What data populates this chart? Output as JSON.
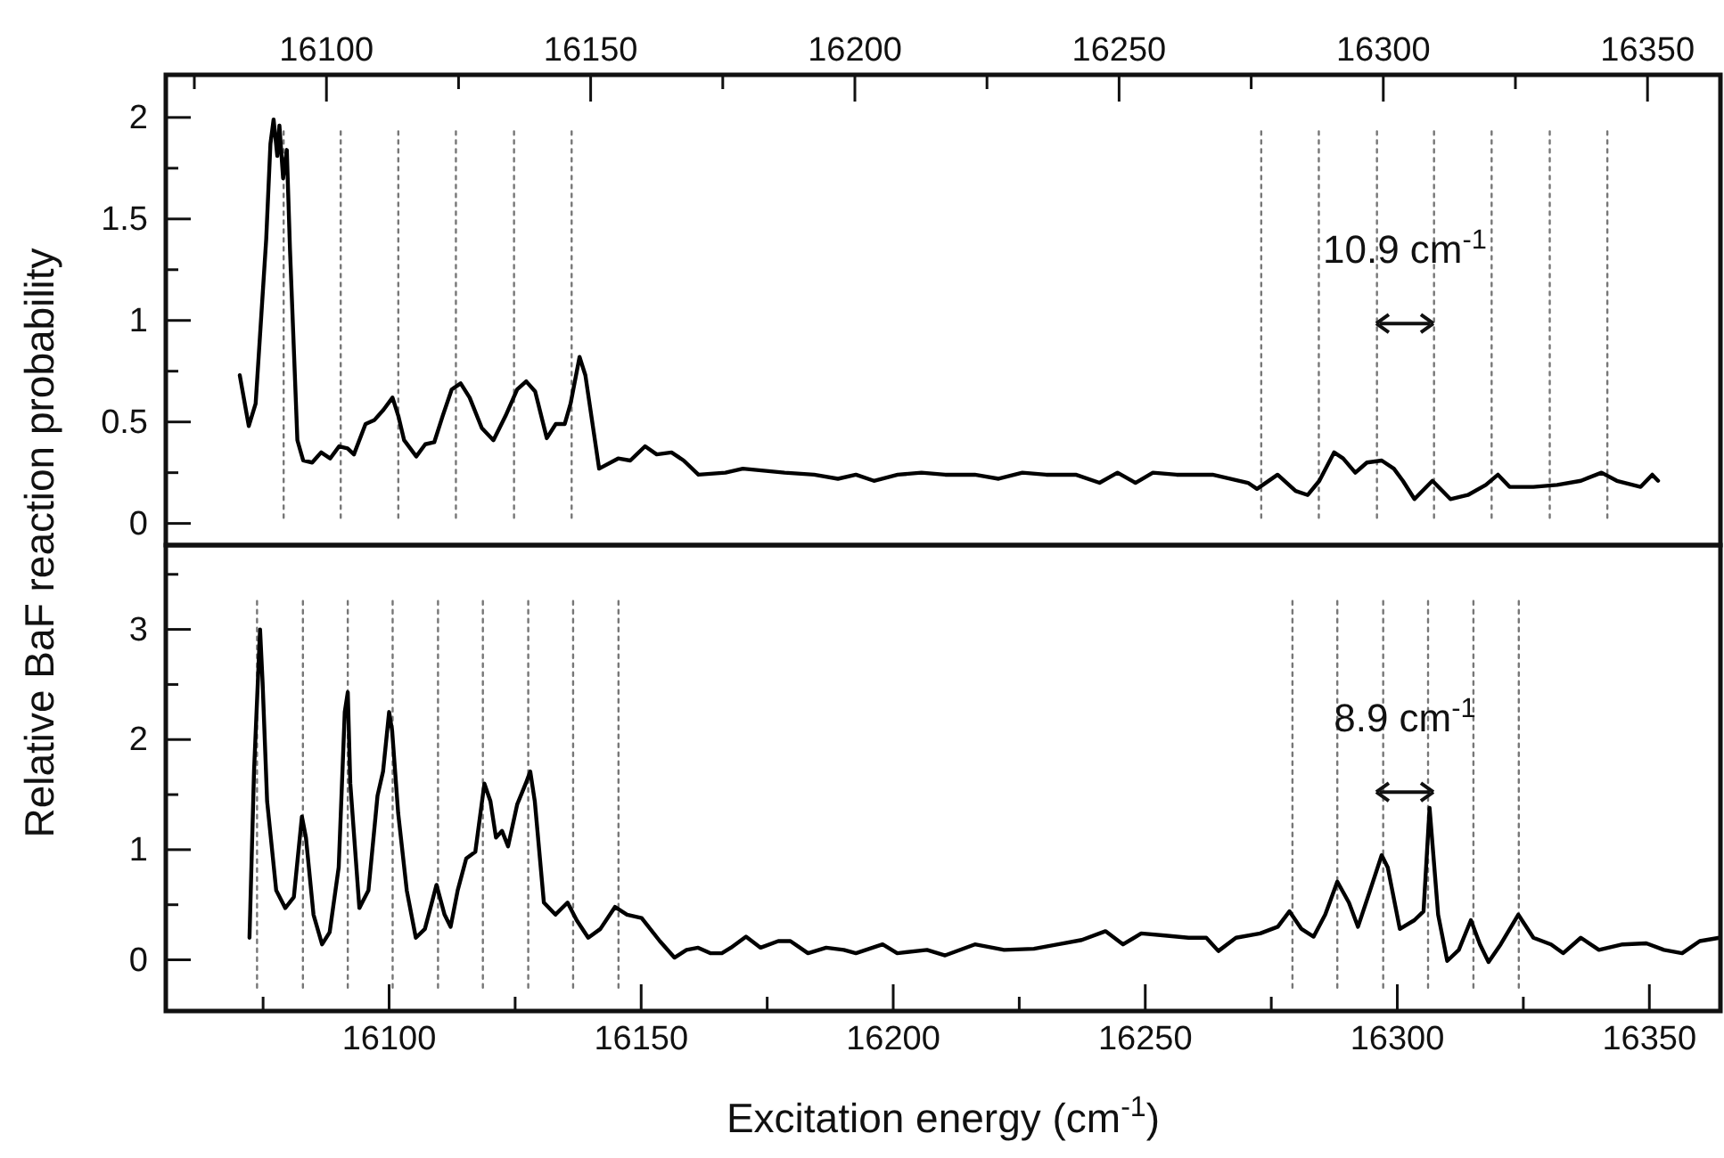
{
  "chart_data": [
    {
      "type": "line",
      "ylabel": "Relative BaF reaction probability",
      "xlim": [
        16069.6,
        16363.8
      ],
      "ylim": [
        -0.107,
        2.21
      ],
      "xticks": [
        {
          "value": 16075,
          "label": null
        },
        16100,
        {
          "value": 16125,
          "label": null
        },
        16150,
        {
          "value": 16175,
          "label": null
        },
        16200,
        {
          "value": 16225,
          "label": null
        },
        16250,
        {
          "value": 16275,
          "label": null
        },
        16300,
        {
          "value": 16325,
          "label": null
        },
        16350
      ],
      "yticks": [
        0,
        {
          "value": 0.25,
          "label": null
        },
        0.5,
        {
          "value": 0.75,
          "label": null
        },
        1,
        {
          "value": 1.25,
          "label": null
        },
        1.5,
        {
          "value": 1.75,
          "label": null
        },
        2
      ],
      "grid": false,
      "marker": "none",
      "line_style": "solid",
      "series": [
        {
          "color": "#000000",
          "x": [
            16083.6,
            16085.3,
            16086.6,
            16088.6,
            16089.4,
            16090.0,
            16090.7,
            16091.1,
            16091.8,
            16092.5,
            16093.1,
            16094.5,
            16095.6,
            16097.3,
            16099.0,
            16100.7,
            16102.4,
            16104.0,
            16105.2,
            16107.4,
            16109.1,
            16110.8,
            16112.5,
            16113.6,
            16114.7,
            16117.0,
            16118.7,
            16120.4,
            16122.0,
            16123.7,
            16125.4,
            16127.1,
            16129.4,
            16131.6,
            16133.9,
            16136.1,
            16137.8,
            16139.5,
            16141.7,
            16143.4,
            16145.1,
            16146.2,
            16147.9,
            16149.0,
            16151.6,
            16155.2,
            16157.5,
            16160.3,
            16162.5,
            16165.3,
            16167.6,
            16170.4,
            16175.5,
            16178.8,
            16186.7,
            16192.3,
            16196.8,
            16200.2,
            16203.6,
            16208.1,
            16212.6,
            16217.1,
            16222.7,
            16227.2,
            16231.7,
            16236.2,
            16241.8,
            16246.3,
            16249.7,
            16253.1,
            16256.4,
            16260.9,
            16267.7,
            16274.4,
            16276.1,
            16280.0,
            16283.4,
            16285.7,
            16287.9,
            16290.7,
            16292.4,
            16294.7,
            16296.9,
            16299.7,
            16302.0,
            16303.7,
            16305.9,
            16309.3,
            16312.7,
            16316.0,
            16319.4,
            16321.7,
            16323.9,
            16328.4,
            16332.9,
            16337.4,
            16341.3,
            16344.2,
            16348.7,
            16350.9,
            16352.0
          ],
          "values": [
            0.73,
            0.48,
            0.59,
            1.4,
            1.87,
            1.99,
            1.81,
            1.96,
            1.7,
            1.84,
            1.35,
            0.41,
            0.31,
            0.3,
            0.35,
            0.32,
            0.38,
            0.37,
            0.34,
            0.49,
            0.51,
            0.56,
            0.62,
            0.53,
            0.41,
            0.33,
            0.39,
            0.4,
            0.53,
            0.66,
            0.69,
            0.62,
            0.47,
            0.41,
            0.53,
            0.66,
            0.7,
            0.65,
            0.42,
            0.49,
            0.49,
            0.59,
            0.82,
            0.73,
            0.27,
            0.32,
            0.31,
            0.38,
            0.34,
            0.35,
            0.31,
            0.24,
            0.25,
            0.27,
            0.25,
            0.24,
            0.22,
            0.24,
            0.21,
            0.24,
            0.25,
            0.24,
            0.24,
            0.22,
            0.25,
            0.24,
            0.24,
            0.2,
            0.25,
            0.2,
            0.25,
            0.24,
            0.24,
            0.2,
            0.17,
            0.24,
            0.16,
            0.14,
            0.21,
            0.35,
            0.32,
            0.25,
            0.3,
            0.31,
            0.27,
            0.21,
            0.12,
            0.21,
            0.12,
            0.14,
            0.19,
            0.24,
            0.18,
            0.18,
            0.19,
            0.21,
            0.25,
            0.21,
            0.18,
            0.24,
            0.21
          ]
        }
      ],
      "ref_lines": [
        {
          "axis": "x",
          "value": 16091.9,
          "line_style": "dotted"
        },
        {
          "axis": "x",
          "value": 16102.7,
          "line_style": "dotted"
        },
        {
          "axis": "x",
          "value": 16113.6,
          "line_style": "dotted"
        },
        {
          "axis": "x",
          "value": 16124.5,
          "line_style": "dotted"
        },
        {
          "axis": "x",
          "value": 16135.5,
          "line_style": "dotted"
        },
        {
          "axis": "x",
          "value": 16146.4,
          "line_style": "dotted"
        },
        {
          "axis": "x",
          "value": 16276.9,
          "line_style": "dotted"
        },
        {
          "axis": "x",
          "value": 16287.8,
          "line_style": "dotted"
        },
        {
          "axis": "x",
          "value": 16298.8,
          "line_style": "dotted"
        },
        {
          "axis": "x",
          "value": 16309.6,
          "line_style": "dotted"
        },
        {
          "axis": "x",
          "value": 16320.5,
          "line_style": "dotted"
        },
        {
          "axis": "x",
          "value": 16331.5,
          "line_style": "dotted"
        },
        {
          "axis": "x",
          "value": 16342.4,
          "line_style": "dotted"
        }
      ],
      "annotations": [
        "10.9 cm$^{-1}$"
      ]
    },
    {
      "type": "line",
      "xlabel": "Excitation energy (cm$^{-1}$)",
      "xlim": [
        16055.7,
        16364.1
      ],
      "ylim": [
        -0.465,
        3.765
      ],
      "xticks": [
        {
          "value": 16075,
          "label": null
        },
        16100,
        {
          "value": 16125,
          "label": null
        },
        16150,
        {
          "value": 16175,
          "label": null
        },
        16200,
        {
          "value": 16225,
          "label": null
        },
        16250,
        {
          "value": 16275,
          "label": null
        },
        16300,
        {
          "value": 16325,
          "label": null
        },
        16350
      ],
      "yticks": [
        0,
        {
          "value": 0.5,
          "label": null
        },
        1,
        {
          "value": 1.5,
          "label": null
        },
        2,
        {
          "value": 2.5,
          "label": null
        },
        3,
        {
          "value": 3.5,
          "label": null
        }
      ],
      "grid": false,
      "marker": "none",
      "line_style": "solid",
      "series": [
        {
          "color": "#000000",
          "x": [
            16072.3,
            16073.2,
            16074.4,
            16074.9,
            16075.8,
            16077.6,
            16079.4,
            16081.1,
            16082.7,
            16083.5,
            16085.0,
            16086.7,
            16088.2,
            16090.0,
            16091.2,
            16091.8,
            16092.3,
            16094.1,
            16095.9,
            16097.7,
            16098.8,
            16100.0,
            16100.6,
            16101.8,
            16103.5,
            16105.3,
            16107.1,
            16109.4,
            16111.0,
            16112.2,
            16113.6,
            16115.3,
            16117.1,
            16118.9,
            16120.1,
            16121.2,
            16122.4,
            16123.6,
            16125.4,
            16127.1,
            16128.0,
            16128.9,
            16130.7,
            16133.0,
            16135.4,
            16137.2,
            16139.5,
            16141.9,
            16144.8,
            16147.2,
            16150.1,
            16153.7,
            16156.6,
            16159.0,
            16161.3,
            16163.7,
            16166.0,
            16167.8,
            16170.8,
            16173.7,
            16177.2,
            16179.6,
            16183.1,
            16186.7,
            16190.2,
            16192.6,
            16197.9,
            16200.8,
            16206.7,
            16210.3,
            16216.2,
            16222.0,
            16227.9,
            16232.7,
            16237.4,
            16242.1,
            16245.6,
            16249.2,
            16253.9,
            16258.6,
            16262.1,
            16264.5,
            16268.0,
            16272.8,
            16276.3,
            16278.6,
            16281.0,
            16283.4,
            16285.7,
            16288.1,
            16290.4,
            16292.2,
            16294.6,
            16296.9,
            16298.1,
            16300.5,
            16303.4,
            16305.2,
            16306.4,
            16308.1,
            16309.9,
            16312.2,
            16314.6,
            16316.4,
            16318.1,
            16320.5,
            16324.0,
            16327.0,
            16330.5,
            16332.9,
            16336.4,
            16340.0,
            16344.7,
            16349.4,
            16352.9,
            16356.5,
            16360.0,
            16363.9
          ],
          "values": [
            0.2,
            1.71,
            3.0,
            2.52,
            1.44,
            0.63,
            0.47,
            0.57,
            1.3,
            1.11,
            0.41,
            0.14,
            0.25,
            0.84,
            2.25,
            2.43,
            1.6,
            0.47,
            0.63,
            1.49,
            1.71,
            2.25,
            2.08,
            1.33,
            0.63,
            0.2,
            0.28,
            0.68,
            0.41,
            0.3,
            0.63,
            0.92,
            0.98,
            1.6,
            1.44,
            1.11,
            1.17,
            1.03,
            1.41,
            1.6,
            1.71,
            1.44,
            0.52,
            0.41,
            0.52,
            0.36,
            0.2,
            0.28,
            0.48,
            0.41,
            0.38,
            0.17,
            0.02,
            0.09,
            0.11,
            0.06,
            0.06,
            0.11,
            0.21,
            0.11,
            0.17,
            0.17,
            0.06,
            0.11,
            0.09,
            0.06,
            0.14,
            0.06,
            0.09,
            0.04,
            0.14,
            0.09,
            0.1,
            0.14,
            0.18,
            0.26,
            0.14,
            0.24,
            0.22,
            0.2,
            0.2,
            0.08,
            0.2,
            0.24,
            0.3,
            0.44,
            0.28,
            0.21,
            0.41,
            0.71,
            0.52,
            0.3,
            0.63,
            0.95,
            0.84,
            0.28,
            0.36,
            0.44,
            1.38,
            0.41,
            -0.01,
            0.09,
            0.36,
            0.14,
            -0.02,
            0.14,
            0.41,
            0.2,
            0.14,
            0.06,
            0.2,
            0.09,
            0.14,
            0.15,
            0.09,
            0.06,
            0.17,
            0.2
          ]
        }
      ],
      "ref_lines": [
        {
          "axis": "x",
          "value": 16073.8,
          "line_style": "dotted"
        },
        {
          "axis": "x",
          "value": 16082.9,
          "line_style": "dotted"
        },
        {
          "axis": "x",
          "value": 16091.8,
          "line_style": "dotted"
        },
        {
          "axis": "x",
          "value": 16100.7,
          "line_style": "dotted"
        },
        {
          "axis": "x",
          "value": 16109.7,
          "line_style": "dotted"
        },
        {
          "axis": "x",
          "value": 16118.6,
          "line_style": "dotted"
        },
        {
          "axis": "x",
          "value": 16127.6,
          "line_style": "dotted"
        },
        {
          "axis": "x",
          "value": 16136.5,
          "line_style": "dotted"
        },
        {
          "axis": "x",
          "value": 16145.5,
          "line_style": "dotted"
        },
        {
          "axis": "x",
          "value": 16279.2,
          "line_style": "dotted"
        },
        {
          "axis": "x",
          "value": 16288.1,
          "line_style": "dotted"
        },
        {
          "axis": "x",
          "value": 16297.2,
          "line_style": "dotted"
        },
        {
          "axis": "x",
          "value": 16306.1,
          "line_style": "dotted"
        },
        {
          "axis": "x",
          "value": 16315.1,
          "line_style": "dotted"
        },
        {
          "axis": "x",
          "value": 16324.1,
          "line_style": "dotted"
        }
      ],
      "annotations": [
        "8.9 cm$^{-1}$"
      ]
    }
  ]
}
